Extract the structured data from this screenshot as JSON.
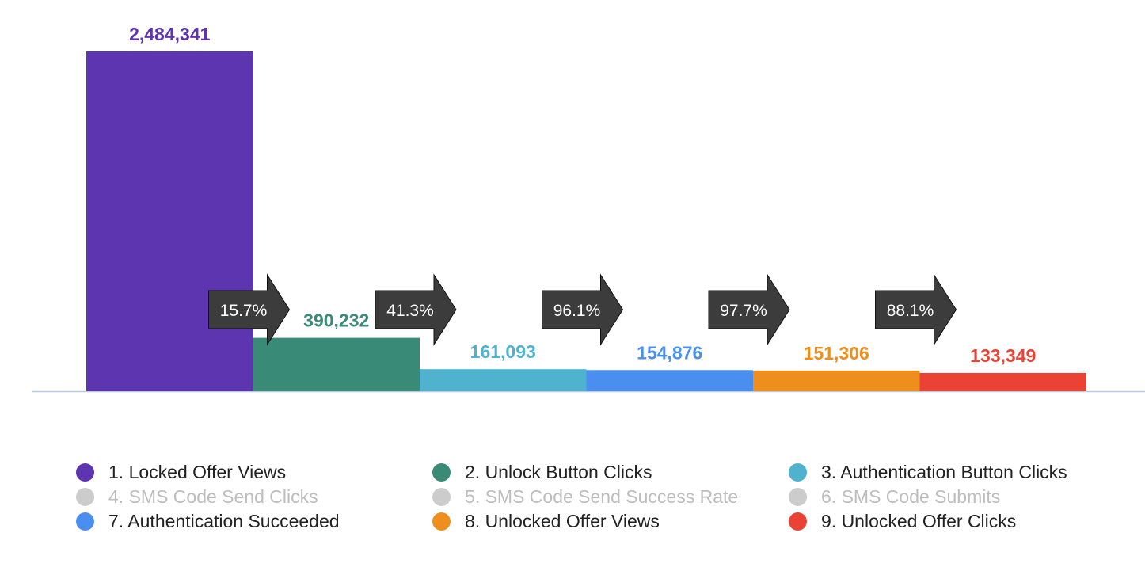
{
  "chart_data": {
    "type": "bar",
    "title": "",
    "xlabel": "",
    "ylabel": "",
    "ylim": [
      0,
      2484341
    ],
    "steps": [
      {
        "label": "1. Locked Offer Views",
        "value": 2484341,
        "value_label": "2,484,341",
        "color": "#5e35b1"
      },
      {
        "label": "2. Unlock Button Clicks",
        "value": 390232,
        "value_label": "390,232",
        "color": "#3a8a78"
      },
      {
        "label": "3. Authentication Button Clicks",
        "value": 161093,
        "value_label": "161,093",
        "color": "#4fb3d0"
      },
      {
        "label": "7. Authentication Succeeded",
        "value": 154876,
        "value_label": "154,876",
        "color": "#4a8ff0"
      },
      {
        "label": "8. Unlocked Offer Views",
        "value": 151306,
        "value_label": "151,306",
        "color": "#ee8f1d"
      },
      {
        "label": "9. Unlocked Offer Clicks",
        "value": 133349,
        "value_label": "133,349",
        "color": "#ea4335"
      }
    ],
    "conversion_rates": [
      {
        "value": 15.7,
        "label": "15.7%"
      },
      {
        "value": 41.3,
        "label": "41.3%"
      },
      {
        "value": 96.1,
        "label": "96.1%"
      },
      {
        "value": 97.7,
        "label": "97.7%"
      },
      {
        "value": 88.1,
        "label": "88.1%"
      }
    ],
    "legend_position": "bottom",
    "legend": [
      {
        "label": "1. Locked Offer Views",
        "color": "#5e35b1",
        "active": true
      },
      {
        "label": "2. Unlock Button Clicks",
        "color": "#3a8a78",
        "active": true
      },
      {
        "label": "3. Authentication Button Clicks",
        "color": "#4fb3d0",
        "active": true
      },
      {
        "label": "4. SMS Code Send Clicks",
        "color": "#cccccc",
        "active": false
      },
      {
        "label": "5. SMS Code Send Success Rate",
        "color": "#cccccc",
        "active": false
      },
      {
        "label": "6. SMS Code Submits",
        "color": "#cccccc",
        "active": false
      },
      {
        "label": "7. Authentication Succeeded",
        "color": "#4a8ff0",
        "active": true
      },
      {
        "label": "8. Unlocked Offer Views",
        "color": "#ee8f1d",
        "active": true
      },
      {
        "label": "9. Unlocked Offer Clicks",
        "color": "#ea4335",
        "active": true
      }
    ],
    "baseline_color": "#b8cbe0",
    "arrow_color": "#3c3c3c"
  }
}
